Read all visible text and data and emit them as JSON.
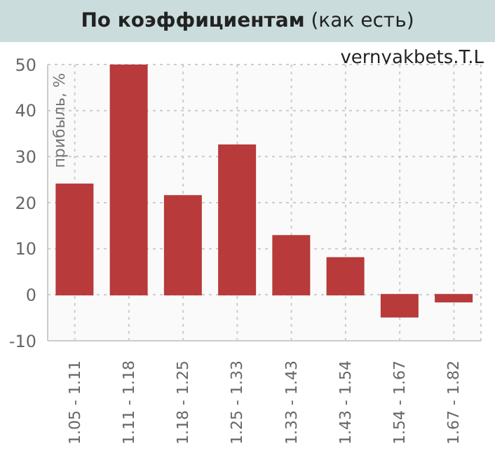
{
  "chart_data": {
    "type": "bar",
    "title": "По коэффициентам (как есть)",
    "ylabel": "прибыль, %",
    "annotations": [
      "vernyakbets.T.L"
    ],
    "categories": [
      "1.05 - 1.11",
      "1.11 - 1.18",
      "1.18 - 1.25",
      "1.25 - 1.33",
      "1.33 - 1.43",
      "1.43 - 1.54",
      "1.54 - 1.67",
      "1.67 - 1.82"
    ],
    "values": [
      24,
      50,
      21.5,
      32.5,
      12.8,
      8,
      -4.8,
      -1.5
    ],
    "color": "#b83a3a",
    "ylim": [
      -10,
      50
    ],
    "yticks": [
      -10,
      0,
      10,
      20,
      30,
      40,
      50
    ],
    "grid": true
  }
}
